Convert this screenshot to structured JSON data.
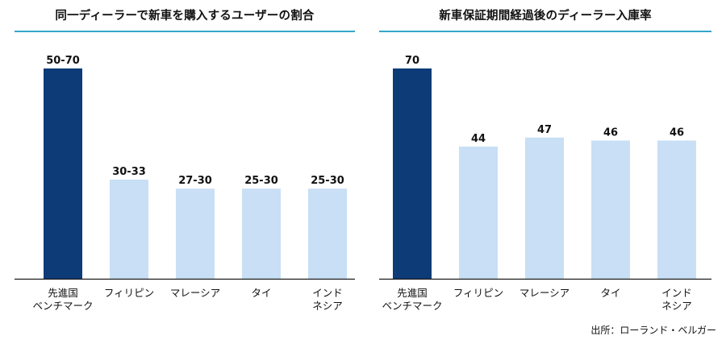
{
  "colors": {
    "benchmark": "#0d3b78",
    "country": "#c8dff5",
    "accent_rule": "#35a7c9",
    "axis": "#1a1a1a"
  },
  "chart_data": [
    {
      "type": "bar",
      "title": "同一ディーラーで新車を購入するユーザーの割合",
      "categories": [
        [
          "先進国",
          "ベンチマーク"
        ],
        [
          "フィリピン"
        ],
        [
          "マレーシア"
        ],
        [
          "タイ"
        ],
        [
          "インド",
          "ネシア"
        ]
      ],
      "values": [
        [
          50,
          70
        ],
        [
          30,
          33
        ],
        [
          27,
          30
        ],
        [
          25,
          30
        ],
        [
          25,
          30
        ]
      ],
      "labels": [
        "50-70",
        "30-33",
        "27-30",
        "25-30",
        "25-30"
      ],
      "highlight_index": 0,
      "ylim": [
        0,
        80
      ],
      "grid": false,
      "xlabel": "",
      "ylabel": ""
    },
    {
      "type": "bar",
      "title": "新車保証期間経過後のディーラー入庫率",
      "categories": [
        [
          "先進国",
          "ベンチマーク"
        ],
        [
          "フィリピン"
        ],
        [
          "マレーシア"
        ],
        [
          "タイ"
        ],
        [
          "インド",
          "ネシア"
        ]
      ],
      "values": [
        70,
        44,
        47,
        46,
        46
      ],
      "labels": [
        "70",
        "44",
        "47",
        "46",
        "46"
      ],
      "highlight_index": 0,
      "ylim": [
        0,
        80
      ],
      "grid": false,
      "xlabel": "",
      "ylabel": ""
    }
  ],
  "source": "出所：ローランド・ベルガー"
}
